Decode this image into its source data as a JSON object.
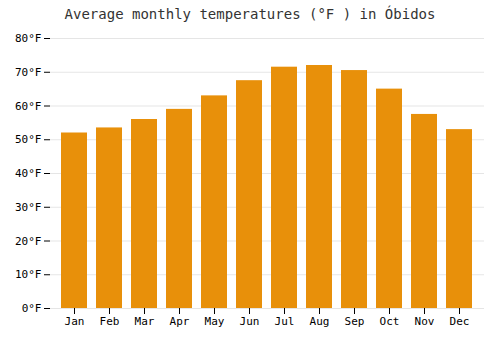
{
  "chart_data": {
    "type": "bar",
    "title": "Average monthly temperatures (°F ) in Óbidos",
    "categories": [
      "Jan",
      "Feb",
      "Mar",
      "Apr",
      "May",
      "Jun",
      "Jul",
      "Aug",
      "Sep",
      "Oct",
      "Nov",
      "Dec"
    ],
    "values": [
      52,
      53.5,
      56,
      59,
      63,
      67.5,
      71.5,
      72,
      70.5,
      65,
      57.5,
      53
    ],
    "color": "#E8900A",
    "ylim": [
      0,
      80
    ],
    "yticks": [
      {
        "value": 0,
        "label": "0°F"
      },
      {
        "value": 10,
        "label": "10°F"
      },
      {
        "value": 20,
        "label": "20°F"
      },
      {
        "value": 30,
        "label": "30°F"
      },
      {
        "value": 40,
        "label": "40°F"
      },
      {
        "value": 50,
        "label": "50°F"
      },
      {
        "value": 60,
        "label": "60°F"
      },
      {
        "value": 70,
        "label": "70°F"
      },
      {
        "value": 80,
        "label": "80°F"
      }
    ],
    "grid": true
  }
}
